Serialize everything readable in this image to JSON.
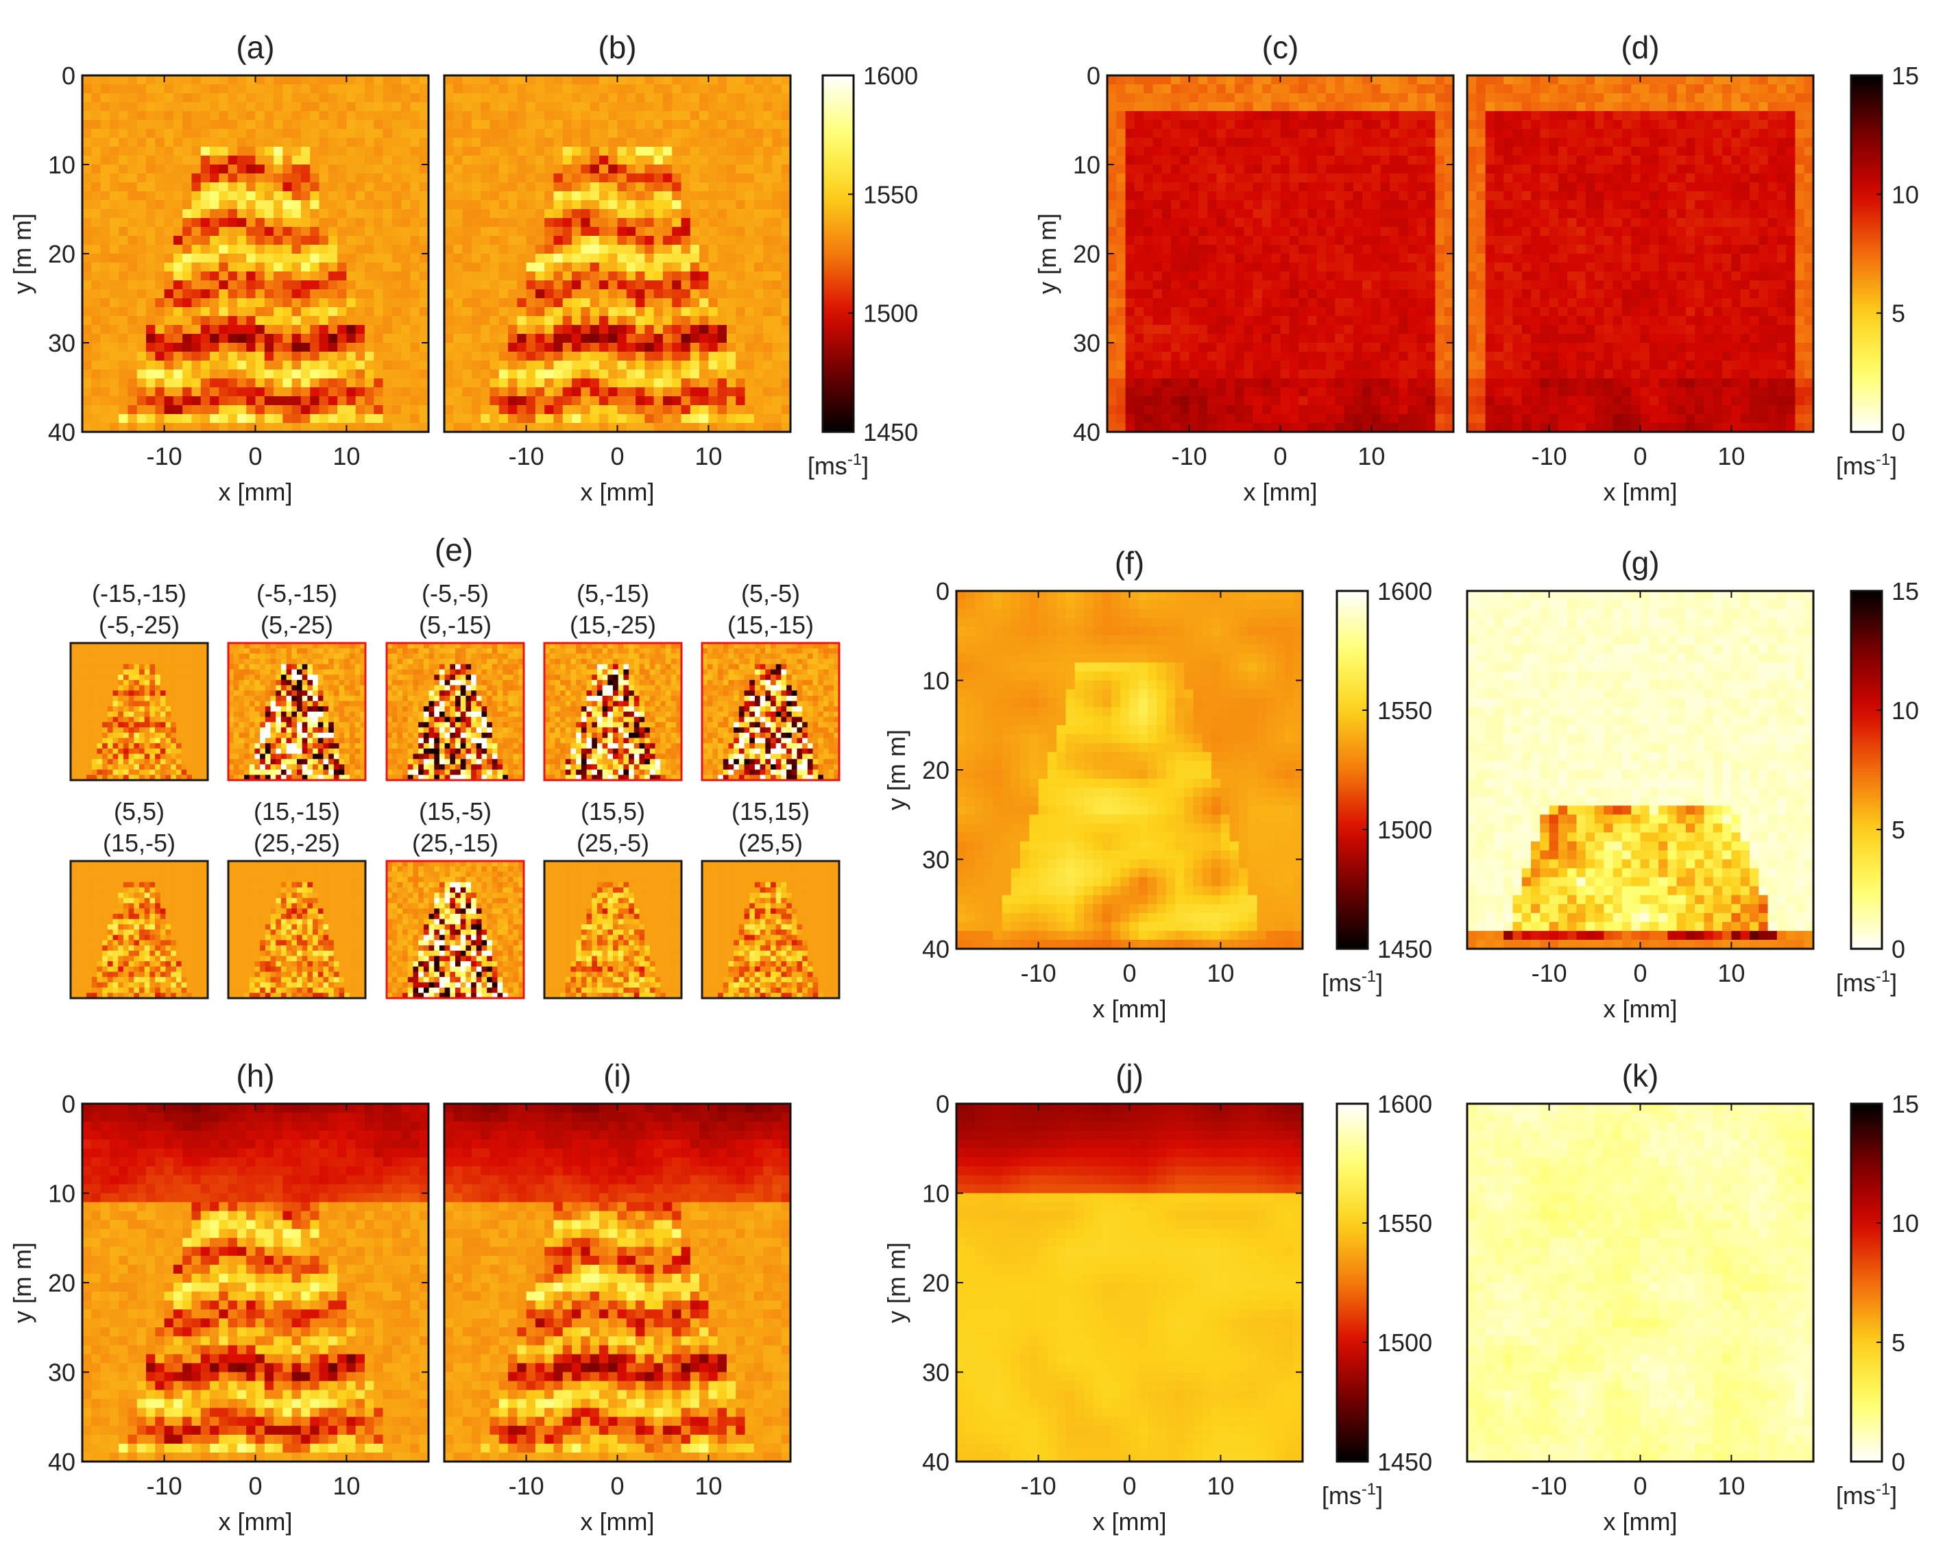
{
  "figure_colors": {
    "velocity_colormap": [
      "#000000",
      "#6e0000",
      "#d90b00",
      "#f47a0c",
      "#fdd21b",
      "#ffff73",
      "#ffffff"
    ],
    "std_colormap": [
      "#ffffff",
      "#ffff6a",
      "#fdcf1a",
      "#f26b0c",
      "#d40600",
      "#7a0000",
      "#000000"
    ],
    "highlight_border": "#e8141a",
    "normal_border": "#1a1a1a"
  },
  "chart_data": [
    {
      "type": "heatmap",
      "id": "a",
      "title": "(a)",
      "xlabel": "x [mm]",
      "ylabel": "y [m m]",
      "xlim": [
        -19,
        19
      ],
      "ylim": [
        0,
        40
      ],
      "xticks": [
        "-10",
        "0",
        "10"
      ],
      "yticks": [
        "0",
        "10",
        "20",
        "30",
        "40"
      ],
      "colormap": "velocity",
      "clim": [
        1450,
        1600
      ],
      "pattern": "layered_inclusion"
    },
    {
      "type": "heatmap",
      "id": "b",
      "title": "(b)",
      "xlabel": "x [mm]",
      "ylabel": "",
      "xlim": [
        -19,
        19
      ],
      "ylim": [
        0,
        40
      ],
      "xticks": [
        "-10",
        "0",
        "10"
      ],
      "yticks": [],
      "colormap": "velocity",
      "clim": [
        1450,
        1600
      ],
      "pattern": "layered_inclusion"
    },
    {
      "type": "heatmap",
      "id": "c",
      "title": "(c)",
      "xlabel": "x [mm]",
      "ylabel": "y [m m]",
      "xlim": [
        -19,
        19
      ],
      "ylim": [
        0,
        40
      ],
      "xticks": [
        "-10",
        "0",
        "10"
      ],
      "yticks": [
        "0",
        "10",
        "20",
        "30",
        "40"
      ],
      "colormap": "std",
      "clim": [
        0,
        15
      ],
      "pattern": "std_uniform_high"
    },
    {
      "type": "heatmap",
      "id": "d",
      "title": "(d)",
      "xlabel": "x [mm]",
      "ylabel": "",
      "xlim": [
        -19,
        19
      ],
      "ylim": [
        0,
        40
      ],
      "xticks": [
        "-10",
        "0",
        "10"
      ],
      "yticks": [],
      "colormap": "std",
      "clim": [
        0,
        15
      ],
      "pattern": "std_uniform_high"
    },
    {
      "type": "heatmap",
      "id": "f",
      "title": "(f)",
      "xlabel": "x [mm]",
      "ylabel": "y [m m]",
      "xlim": [
        -19,
        19
      ],
      "ylim": [
        0,
        40
      ],
      "xticks": [
        "-10",
        "0",
        "10"
      ],
      "yticks": [
        "0",
        "10",
        "20",
        "30",
        "40"
      ],
      "colormap": "velocity",
      "clim": [
        1450,
        1600
      ],
      "pattern": "smooth_inclusion"
    },
    {
      "type": "heatmap",
      "id": "g",
      "title": "(g)",
      "xlabel": "x [mm]",
      "ylabel": "",
      "xlim": [
        -19,
        19
      ],
      "ylim": [
        0,
        40
      ],
      "xticks": [
        "-10",
        "0",
        "10"
      ],
      "yticks": [],
      "colormap": "std",
      "clim": [
        0,
        15
      ],
      "pattern": "std_low_bottom"
    },
    {
      "type": "heatmap",
      "id": "h",
      "title": "(h)",
      "xlabel": "x [mm]",
      "ylabel": "y [m m]",
      "xlim": [
        -19,
        19
      ],
      "ylim": [
        0,
        40
      ],
      "xticks": [
        "-10",
        "0",
        "10"
      ],
      "yticks": [
        "0",
        "10",
        "20",
        "30",
        "40"
      ],
      "colormap": "velocity",
      "clim": [
        1450,
        1600
      ],
      "pattern": "top_layer_inclusion"
    },
    {
      "type": "heatmap",
      "id": "i",
      "title": "(i)",
      "xlabel": "x [mm]",
      "ylabel": "",
      "xlim": [
        -19,
        19
      ],
      "ylim": [
        0,
        40
      ],
      "xticks": [
        "-10",
        "0",
        "10"
      ],
      "yticks": [],
      "colormap": "velocity",
      "clim": [
        1450,
        1600
      ],
      "pattern": "top_layer_inclusion"
    },
    {
      "type": "heatmap",
      "id": "j",
      "title": "(j)",
      "xlabel": "x [mm]",
      "ylabel": "y [m m]",
      "xlim": [
        -19,
        19
      ],
      "ylim": [
        0,
        40
      ],
      "xticks": [
        "-10",
        "0",
        "10"
      ],
      "yticks": [
        "0",
        "10",
        "20",
        "30",
        "40"
      ],
      "colormap": "velocity",
      "clim": [
        1450,
        1600
      ],
      "pattern": "top_layer_smooth"
    },
    {
      "type": "heatmap",
      "id": "k",
      "title": "(k)",
      "xlabel": "x [mm]",
      "ylabel": "",
      "xlim": [
        -19,
        19
      ],
      "ylim": [
        0,
        40
      ],
      "xticks": [
        "-10",
        "0",
        "10"
      ],
      "yticks": [],
      "colormap": "std",
      "clim": [
        0,
        15
      ],
      "pattern": "std_very_low"
    }
  ],
  "colorbars": [
    {
      "id": "cb1",
      "colormap": "velocity",
      "ticks": [
        "1600",
        "1550",
        "1500",
        "1450"
      ],
      "unit": "[ms",
      "unit_sup": "-1",
      "unit_end": "]"
    },
    {
      "id": "cb2",
      "colormap": "std",
      "ticks": [
        "15",
        "10",
        "5",
        "0"
      ],
      "unit": "[ms",
      "unit_sup": "-1",
      "unit_end": "]"
    },
    {
      "id": "cb3",
      "colormap": "velocity",
      "ticks": [
        "1600",
        "1550",
        "1500",
        "1450"
      ],
      "unit": "[ms",
      "unit_sup": "-1",
      "unit_end": "]"
    },
    {
      "id": "cb4",
      "colormap": "std",
      "ticks": [
        "15",
        "10",
        "5",
        "0"
      ],
      "unit": "[ms",
      "unit_sup": "-1",
      "unit_end": "]"
    },
    {
      "id": "cb5",
      "colormap": "velocity",
      "ticks": [
        "1600",
        "1550",
        "1500",
        "1450"
      ],
      "unit": "[ms",
      "unit_sup": "-1",
      "unit_end": "]"
    },
    {
      "id": "cb6",
      "colormap": "std",
      "ticks": [
        "15",
        "10",
        "5",
        "0"
      ],
      "unit": "[ms",
      "unit_sup": "-1",
      "unit_end": "]"
    }
  ],
  "panel_e": {
    "title": "(e)",
    "thumbnails": [
      {
        "line1": "(-15,-15)",
        "line2": "(-5,-25)",
        "highlighted": false,
        "style": "weak"
      },
      {
        "line1": "(-5,-15)",
        "line2": "(5,-25)",
        "highlighted": true,
        "style": "strong"
      },
      {
        "line1": "(-5,-5)",
        "line2": "(5,-15)",
        "highlighted": true,
        "style": "strong"
      },
      {
        "line1": "(5,-15)",
        "line2": "(15,-25)",
        "highlighted": true,
        "style": "strong"
      },
      {
        "line1": "(5,-5)",
        "line2": "(15,-15)",
        "highlighted": true,
        "style": "strong"
      },
      {
        "line1": "(5,5)",
        "line2": "(15,-5)",
        "highlighted": false,
        "style": "weak"
      },
      {
        "line1": "(15,-15)",
        "line2": "(25,-25)",
        "highlighted": false,
        "style": "weak"
      },
      {
        "line1": "(15,-5)",
        "line2": "(25,-15)",
        "highlighted": true,
        "style": "strong"
      },
      {
        "line1": "(15,5)",
        "line2": "(25,-5)",
        "highlighted": false,
        "style": "weak"
      },
      {
        "line1": "(15,15)",
        "line2": "(25,5)",
        "highlighted": false,
        "style": "weak"
      }
    ]
  }
}
